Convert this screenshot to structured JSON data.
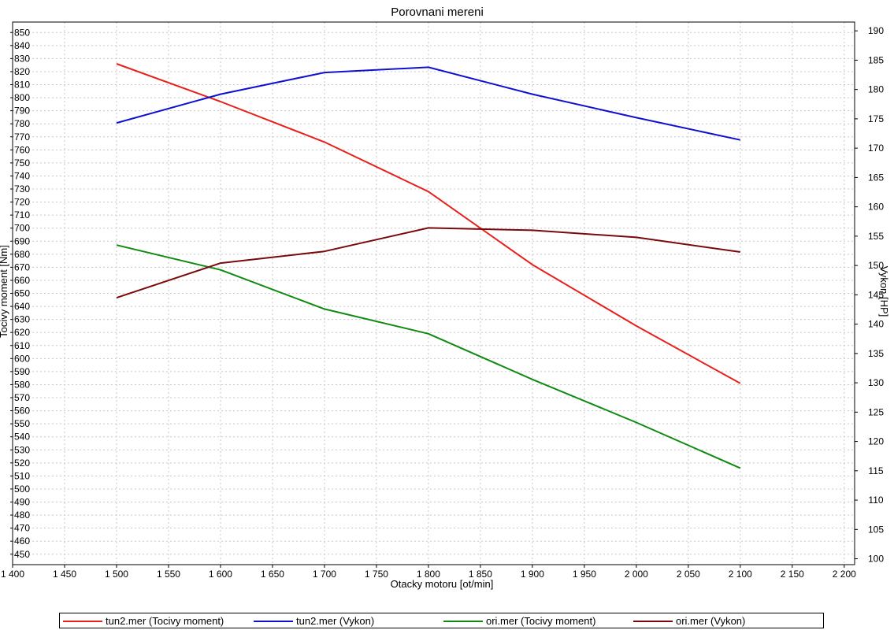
{
  "chart_data": {
    "type": "line",
    "title": "Porovnani mereni",
    "xlabel": "Otacky motoru [ot/min]",
    "ylabel_left": "Tocivy moment [Nm]",
    "ylabel_right": "Vykon [HP]",
    "xlim": [
      1400,
      2210
    ],
    "ylim_left": [
      442,
      858
    ],
    "ylim_right": [
      99,
      191.5
    ],
    "x_ticks": [
      1400,
      1450,
      1500,
      1550,
      1600,
      1650,
      1700,
      1750,
      1800,
      1850,
      1900,
      1950,
      2000,
      2050,
      2100,
      2150,
      2200
    ],
    "x_tick_labels": [
      "1 400",
      "1 450",
      "1 500",
      "1 550",
      "1 600",
      "1 650",
      "1 700",
      "1 750",
      "1 800",
      "1 850",
      "1 900",
      "1 950",
      "2 000",
      "2 050",
      "2 100",
      "2 150",
      "2 200"
    ],
    "y_left_ticks": [
      450,
      460,
      470,
      480,
      490,
      500,
      510,
      520,
      530,
      540,
      550,
      560,
      570,
      580,
      590,
      600,
      610,
      620,
      630,
      640,
      650,
      660,
      670,
      680,
      690,
      700,
      710,
      720,
      730,
      740,
      750,
      760,
      770,
      780,
      790,
      800,
      810,
      820,
      830,
      840,
      850
    ],
    "y_right_ticks": [
      100,
      105,
      110,
      115,
      120,
      125,
      130,
      135,
      140,
      145,
      150,
      155,
      160,
      165,
      170,
      175,
      180,
      185,
      190
    ],
    "grid": true,
    "legend_placement": "bottom",
    "x": [
      1500,
      1600,
      1700,
      1800,
      1900,
      2000,
      2100
    ],
    "series": [
      {
        "name": "tun2.mer  (Tocivy moment)",
        "axis": "left",
        "color": "#e8201c",
        "values": [
          826,
          797,
          766,
          728,
          672,
          625,
          581
        ]
      },
      {
        "name": "tun2.mer  (Vykon)",
        "axis": "right",
        "color": "#1010d0",
        "values": [
          174.3,
          179.2,
          182.9,
          183.8,
          179.2,
          175.2,
          171.4
        ]
      },
      {
        "name": "ori.mer  (Tocivy moment)",
        "axis": "left",
        "color": "#108a10",
        "values": [
          687,
          668,
          638,
          619,
          584,
          551,
          516
        ]
      },
      {
        "name": "ori.mer  (Vykon)",
        "axis": "right",
        "color": "#7a0a0a",
        "values": [
          144.5,
          150.4,
          152.4,
          156.4,
          156.0,
          154.8,
          152.3
        ]
      }
    ]
  }
}
